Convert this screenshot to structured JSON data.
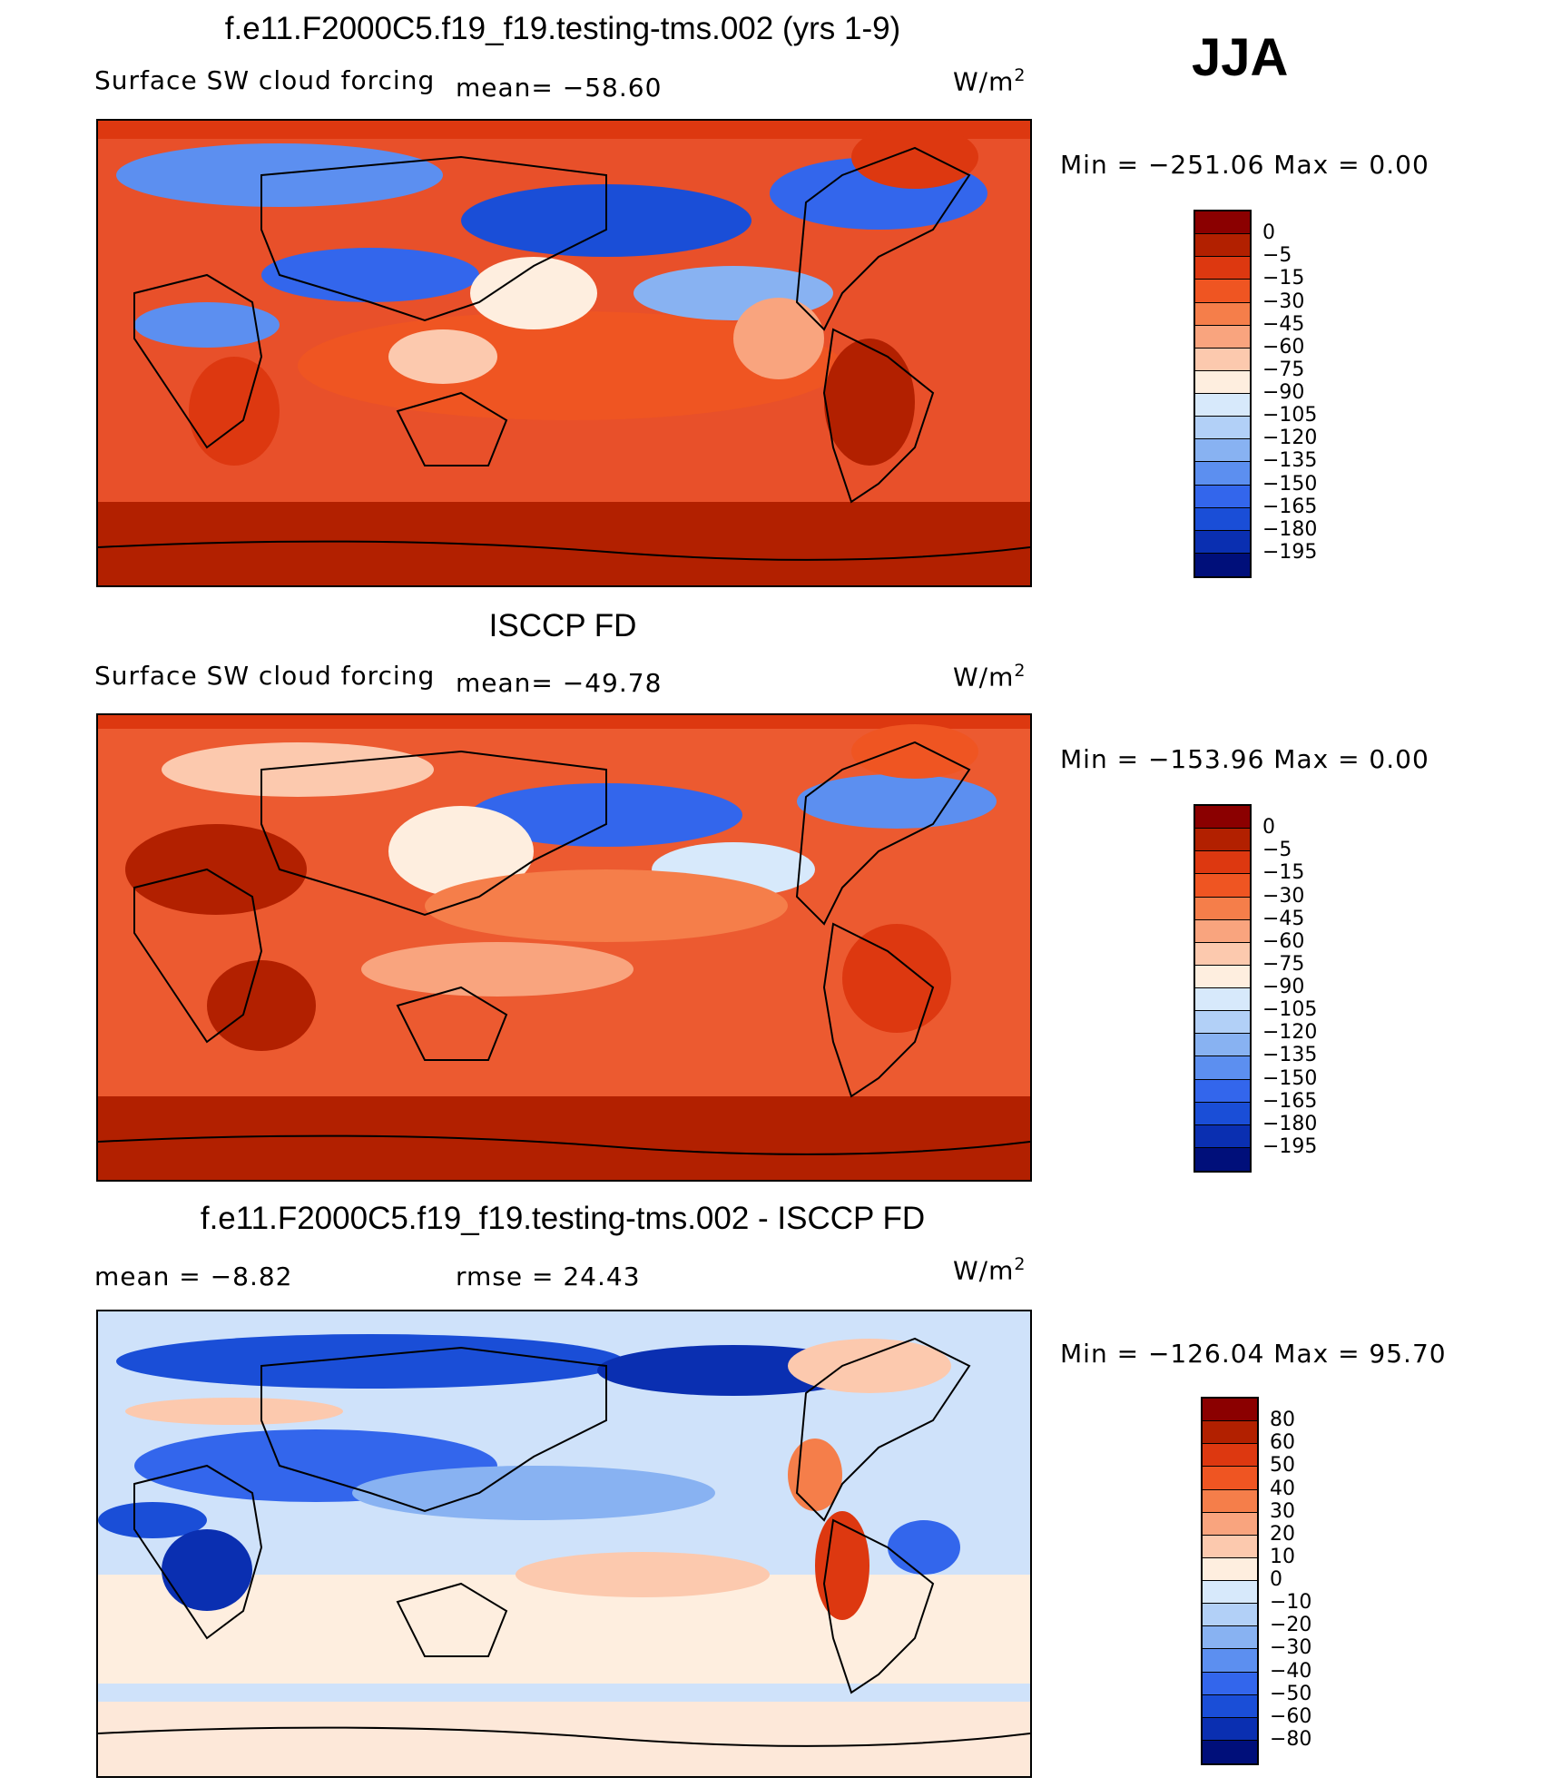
{
  "season": "JJA",
  "panels": [
    {
      "id": "model",
      "title": "f.e11.F2000C5.f19_f19.testing-tms.002 (yrs 1-9)",
      "variable": "Surface SW cloud forcing",
      "stat1": "mean=  −58.60",
      "stat2": "",
      "units": "W/m",
      "units_sup": "2",
      "minmax": "Min  =  −251.06  Max  =      0.00",
      "colorbar": {
        "labels": [
          "0",
          "−5",
          "−15",
          "−30",
          "−45",
          "−60",
          "−75",
          "−90",
          "−105",
          "−120",
          "−135",
          "−150",
          "−165",
          "−180",
          "−195"
        ],
        "colors": [
          "#8b0000",
          "#b22000",
          "#dd3810",
          "#ef5522",
          "#f57e4a",
          "#f9a47e",
          "#fcc9ae",
          "#feeedf",
          "#d7e9fb",
          "#b2d0f7",
          "#88b2f2",
          "#5c8ff0",
          "#3366ec",
          "#1a4ed7",
          "#0a2fb1",
          "#000f7a"
        ]
      },
      "fill": "#e8502a"
    },
    {
      "id": "obs",
      "title": "ISCCP FD",
      "variable": "Surface SW cloud forcing",
      "stat1": "mean=  −49.78",
      "stat2": "",
      "units": "W/m",
      "units_sup": "2",
      "minmax": "Min  =  −153.96  Max  =      0.00",
      "colorbar": {
        "labels": [
          "0",
          "−5",
          "−15",
          "−30",
          "−45",
          "−60",
          "−75",
          "−90",
          "−105",
          "−120",
          "−135",
          "−150",
          "−165",
          "−180",
          "−195"
        ],
        "colors": [
          "#8b0000",
          "#b22000",
          "#dd3810",
          "#ef5522",
          "#f57e4a",
          "#f9a47e",
          "#fcc9ae",
          "#feeedf",
          "#d7e9fb",
          "#b2d0f7",
          "#88b2f2",
          "#5c8ff0",
          "#3366ec",
          "#1a4ed7",
          "#0a2fb1",
          "#000f7a"
        ]
      },
      "fill": "#ec5a30"
    },
    {
      "id": "diff",
      "title": "f.e11.F2000C5.f19_f19.testing-tms.002 - ISCCP FD",
      "variable": "",
      "stat1": "mean  =     −8.82",
      "stat2": "rmse  =    24.43",
      "units": "W/m",
      "units_sup": "2",
      "minmax": "Min  =  −126.04  Max  =    95.70",
      "colorbar": {
        "labels": [
          "80",
          "60",
          "50",
          "40",
          "30",
          "20",
          "10",
          "0",
          "−10",
          "−20",
          "−30",
          "−40",
          "−50",
          "−60",
          "−80"
        ],
        "colors": [
          "#8b0000",
          "#b22000",
          "#dd3810",
          "#ef5522",
          "#f57e4a",
          "#f9a47e",
          "#fcc9ae",
          "#feeedf",
          "#d7e9fb",
          "#b2d0f7",
          "#88b2f2",
          "#5c8ff0",
          "#3366ec",
          "#1a4ed7",
          "#0a2fb1",
          "#000f7a"
        ]
      },
      "fill": "#cfe2fa"
    }
  ]
}
